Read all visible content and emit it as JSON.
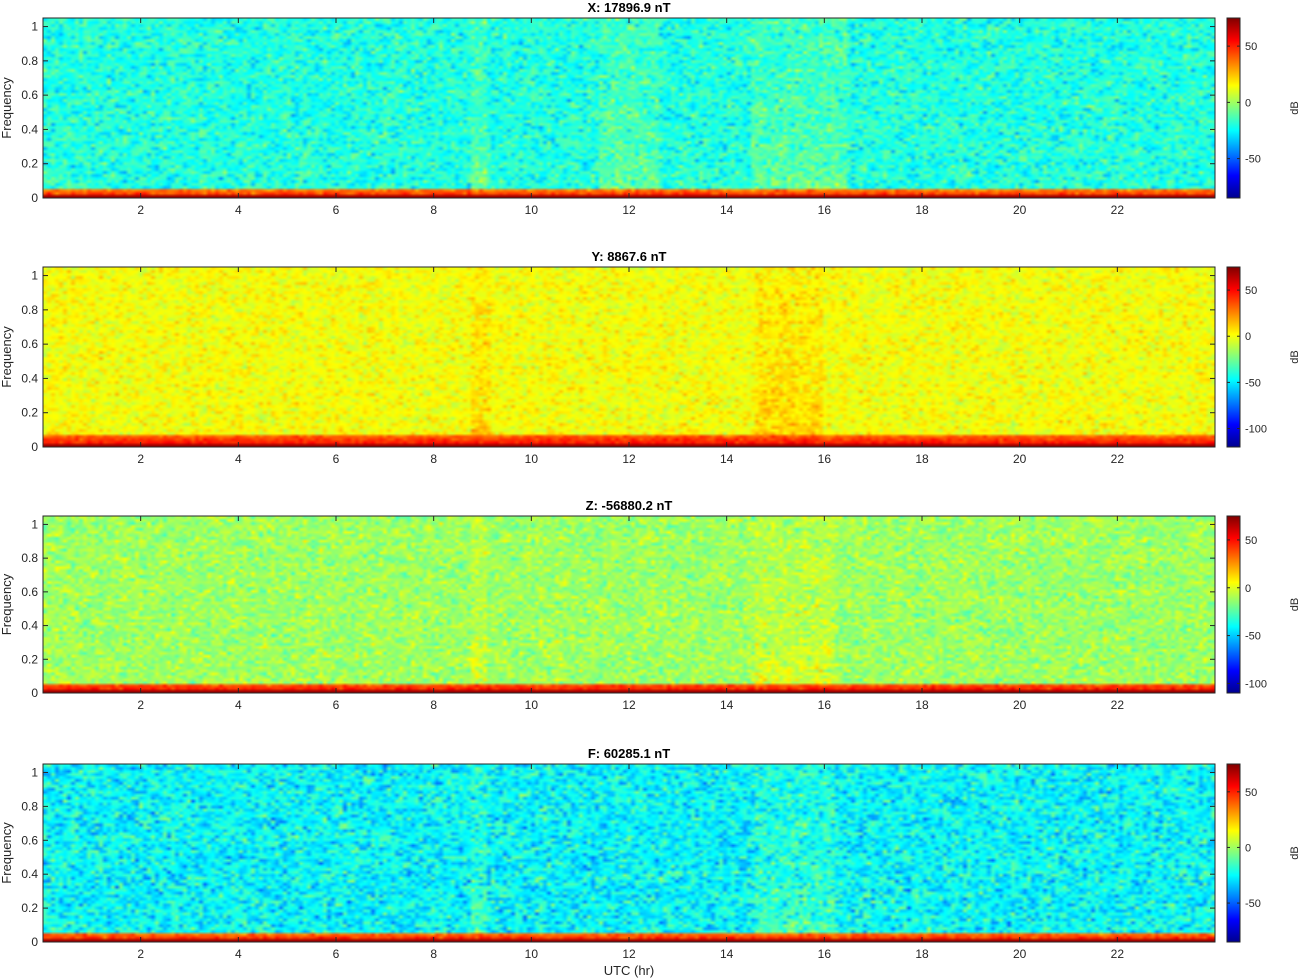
{
  "figure": {
    "xlabel": "UTC (hr)"
  },
  "colormap": [
    "#00008f",
    "#0000ff",
    "#0080ff",
    "#00ffff",
    "#80ff80",
    "#ffff00",
    "#ff8000",
    "#ff0000",
    "#800000"
  ],
  "chart_data": [
    {
      "type": "heatmap",
      "title": "X: 17896.9 nT",
      "ylabel": "Frequency",
      "colorbar_label": "dB",
      "x_range": [
        0,
        24
      ],
      "y_range": [
        0,
        1.05
      ],
      "xticks": [
        2,
        4,
        6,
        8,
        10,
        12,
        14,
        16,
        18,
        20,
        22
      ],
      "yticks": [
        0,
        0.2,
        0.4,
        0.6,
        0.8,
        1
      ],
      "clim": [
        -85,
        75
      ],
      "colorbar_ticks": [
        -50,
        0,
        50
      ],
      "background_db": -20,
      "noise_db": 10,
      "low_freq_band": {
        "ymax": 0.06,
        "db": 30
      },
      "enhanced_hours": [
        [
          8.8,
          9.1
        ],
        [
          11.4,
          12.6
        ],
        [
          14.5,
          16.5
        ]
      ],
      "grid": false,
      "legend": "none"
    },
    {
      "type": "heatmap",
      "title": "Y: 8867.6 nT",
      "ylabel": "Frequency",
      "colorbar_label": "dB",
      "x_range": [
        0,
        24
      ],
      "y_range": [
        0,
        1.05
      ],
      "xticks": [
        2,
        4,
        6,
        8,
        10,
        12,
        14,
        16,
        18,
        20,
        22
      ],
      "yticks": [
        0,
        0.2,
        0.4,
        0.6,
        0.8,
        1
      ],
      "clim": [
        -120,
        75
      ],
      "colorbar_ticks": [
        -100,
        -50,
        0,
        50
      ],
      "background_db": 0,
      "noise_db": 8,
      "low_freq_band": {
        "ymax": 0.07,
        "db": 30
      },
      "enhanced_hours": [
        [
          8.8,
          9.2
        ],
        [
          14.6,
          16.0
        ]
      ],
      "grid": false,
      "legend": "none"
    },
    {
      "type": "heatmap",
      "title": "Z: -56880.2 nT",
      "ylabel": "Frequency",
      "colorbar_label": "dB",
      "x_range": [
        0,
        24
      ],
      "y_range": [
        0,
        1.05
      ],
      "xticks": [
        2,
        4,
        6,
        8,
        10,
        12,
        14,
        16,
        18,
        20,
        22
      ],
      "yticks": [
        0,
        0.2,
        0.4,
        0.6,
        0.8,
        1
      ],
      "clim": [
        -110,
        75
      ],
      "colorbar_ticks": [
        -100,
        -50,
        0,
        50
      ],
      "background_db": -12,
      "noise_db": 10,
      "low_freq_band": {
        "ymax": 0.06,
        "db": 32
      },
      "enhanced_hours": [
        [
          8.8,
          9.1
        ],
        [
          14.6,
          16.2
        ]
      ],
      "grid": false,
      "legend": "none"
    },
    {
      "type": "heatmap",
      "title": "F: 60285.1 nT",
      "ylabel": "Frequency",
      "colorbar_label": "dB",
      "x_range": [
        0,
        24
      ],
      "y_range": [
        0,
        1.05
      ],
      "xticks": [
        2,
        4,
        6,
        8,
        10,
        12,
        14,
        16,
        18,
        20,
        22
      ],
      "yticks": [
        0,
        0.2,
        0.4,
        0.6,
        0.8,
        1
      ],
      "clim": [
        -85,
        75
      ],
      "colorbar_ticks": [
        -50,
        0,
        50
      ],
      "background_db": -25,
      "noise_db": 12,
      "low_freq_band": {
        "ymax": 0.06,
        "db": 32
      },
      "enhanced_hours": [
        [
          8.8,
          9.1
        ],
        [
          14.6,
          16.2
        ]
      ],
      "grid": false,
      "legend": "none"
    }
  ]
}
